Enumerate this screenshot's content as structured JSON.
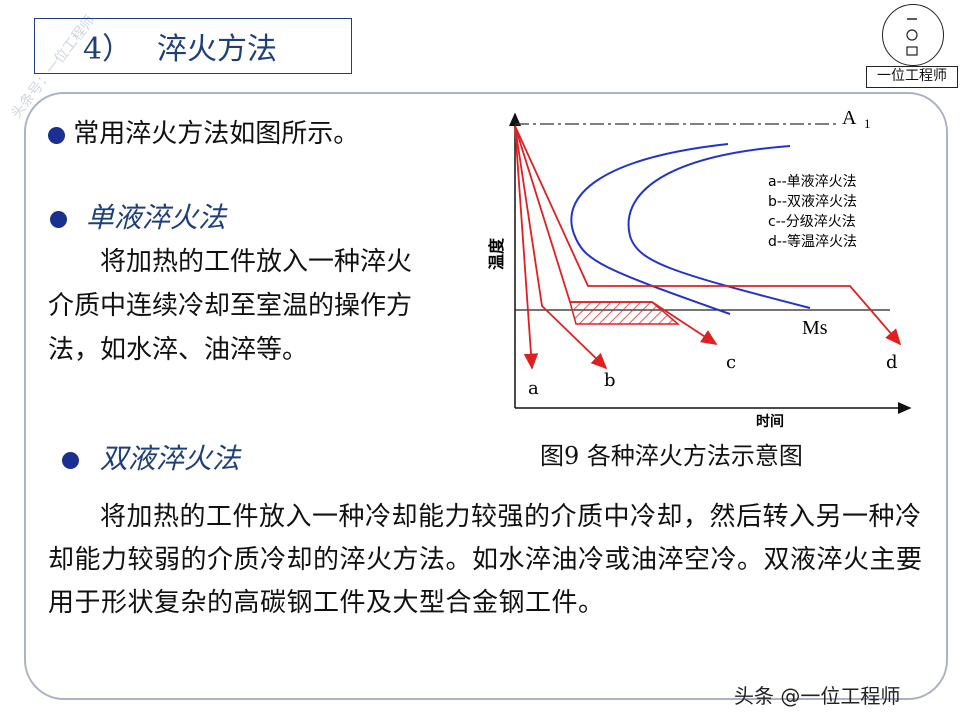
{
  "title": {
    "number": "4）",
    "text": "淬火方法"
  },
  "logo": {
    "caption": "一位工程师"
  },
  "side_watermark": "头条号：一位工程师",
  "intro": "常用淬火方法如图所示。",
  "single": {
    "heading": "单液淬火法",
    "body": "将加热的工件放入一种淬火介质中连续冷却至室温的操作方法，如水淬、油淬等。"
  },
  "double": {
    "heading": "双液淬火法",
    "body": "将加热的工件放入一种冷却能力较强的介质中冷却，然后转入另一种冷却能力较弱的介质冷却的淬火方法。如水淬油冷或油淬空冷。双液淬火主要用于形状复杂的高碳钢工件及大型合金钢工件。"
  },
  "figure": {
    "caption": "图9  各种淬火方法示意图",
    "y_label": "温度",
    "x_label": "时间",
    "a1_label": "A",
    "a1_sub": "1",
    "ms_label": "Ms",
    "legend": [
      "a--单液淬火法",
      "b--双液淬火法",
      "c--分级淬火法",
      "d--等温淬火法"
    ],
    "curve_labels": [
      "a",
      "b",
      "c",
      "d"
    ],
    "colors": {
      "cooling_curve": "#e02020",
      "c_curve": "#2233cc",
      "axis": "#111111"
    }
  },
  "watermark": "头条 @一位工程师"
}
